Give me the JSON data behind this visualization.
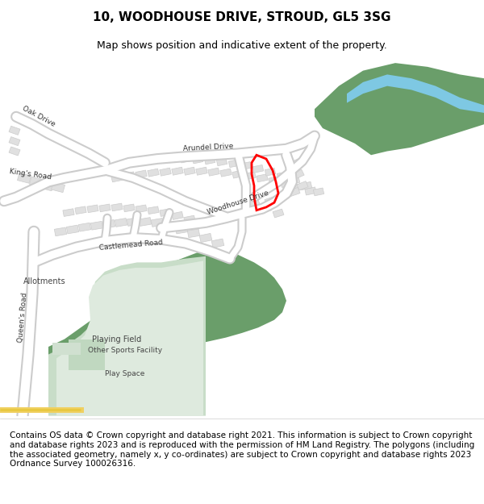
{
  "title": "10, WOODHOUSE DRIVE, STROUD, GL5 3SG",
  "subtitle": "Map shows position and indicative extent of the property.",
  "footer": "Contains OS data © Crown copyright and database right 2021. This information is subject to Crown copyright and database rights 2023 and is reproduced with the permission of HM Land Registry. The polygons (including the associated geometry, namely x, y co-ordinates) are subject to Crown copyright and database rights 2023 Ordnance Survey 100026316.",
  "bg_color": "#ffffff",
  "map_bg": "#f8f8f8",
  "road_color": "#ffffff",
  "road_outline": "#cccccc",
  "building_color": "#e0e0e0",
  "building_outline": "#cccccc",
  "green_dark": "#6a9e6a",
  "green_light": "#c8ddc8",
  "water_color": "#7ec8e3",
  "red_plot": "#ff0000",
  "title_fontsize": 11,
  "subtitle_fontsize": 9,
  "footer_fontsize": 7.5
}
